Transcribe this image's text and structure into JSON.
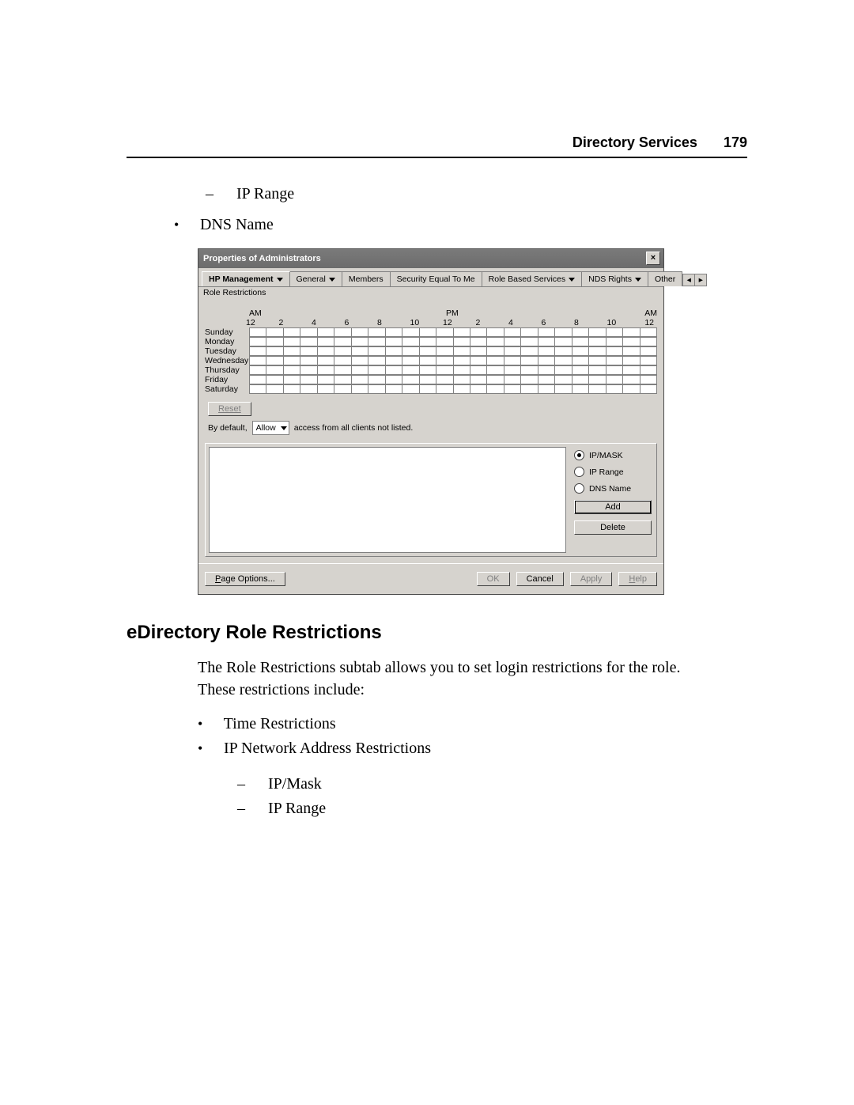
{
  "header": {
    "section": "Directory Services",
    "page_number": "179"
  },
  "top_list": {
    "dash_item": "IP Range",
    "bullet_item": "DNS Name"
  },
  "dialog": {
    "title": "Properties of Administrators",
    "close_glyph": "×",
    "tabs": {
      "active": "HP Management",
      "subtab": "Role Restrictions",
      "items": [
        "General",
        "Members",
        "Security Equal To Me",
        "Role Based Services",
        "NDS Rights",
        "Other"
      ],
      "nav_left": "◂",
      "nav_right": "▸"
    },
    "time_grid": {
      "am_label": "AM",
      "pm_label": "PM",
      "am_label_right": "AM",
      "hours": [
        "12",
        "2",
        "4",
        "6",
        "8",
        "10",
        "12",
        "2",
        "4",
        "6",
        "8",
        "10",
        "12"
      ],
      "days": [
        "Sunday",
        "Monday",
        "Tuesday",
        "Wednesday",
        "Thursday",
        "Friday",
        "Saturday"
      ]
    },
    "reset_label": "Reset",
    "default_row": {
      "prefix": "By default,",
      "select_value": "Allow",
      "suffix": "access from all clients not listed."
    },
    "address": {
      "radios": [
        {
          "label": "IP/MASK",
          "checked": true
        },
        {
          "label": "IP Range",
          "checked": false
        },
        {
          "label": "DNS Name",
          "checked": false
        }
      ],
      "add_label": "Add",
      "delete_label": "Delete"
    },
    "footer": {
      "page_options": "Page Options...",
      "ok": "OK",
      "cancel": "Cancel",
      "apply": "Apply",
      "help": "Help"
    }
  },
  "section2": {
    "heading": "eDirectory Role Restrictions",
    "para": "The Role Restrictions subtab allows you to set login restrictions for the role. These restrictions include:",
    "bullets": [
      "Time Restrictions",
      "IP Network Address Restrictions"
    ],
    "dashes": [
      "IP/Mask",
      "IP Range"
    ]
  }
}
